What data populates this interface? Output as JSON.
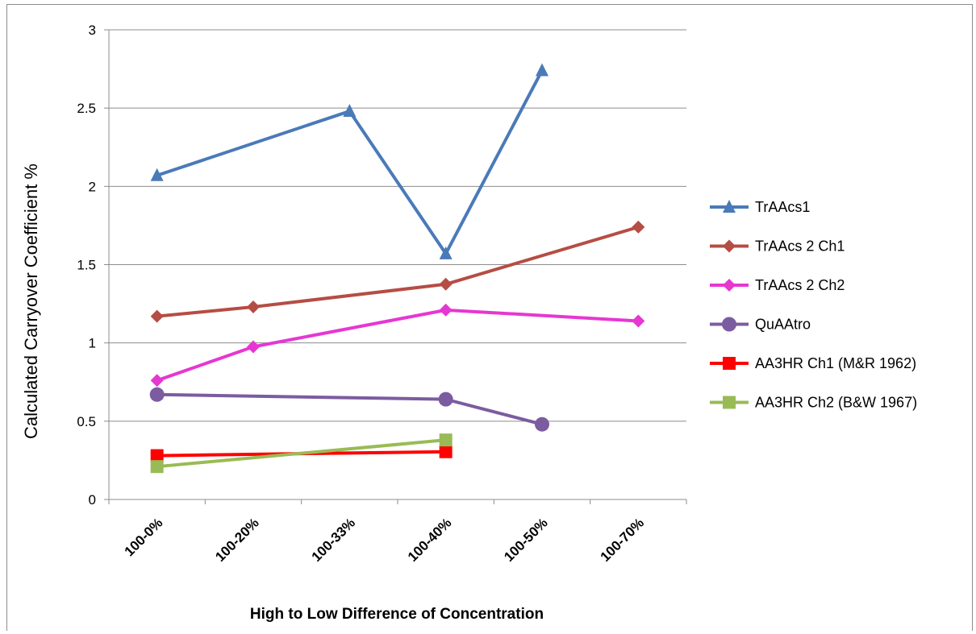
{
  "chart_data": {
    "type": "line",
    "title": "",
    "xlabel": "High to Low Difference of Concentration",
    "ylabel": "Calculated Carryover Coefficient %",
    "categories": [
      "100-0%",
      "100-20%",
      "100-33%",
      "100-40%",
      "100-50%",
      "100-70%"
    ],
    "ylim": [
      0,
      3
    ],
    "yticks": [
      0,
      0.5,
      1,
      1.5,
      2,
      2.5,
      3
    ],
    "ytick_labels": [
      "0",
      "0.5",
      "1",
      "1.5",
      "2",
      "2.5",
      "3"
    ],
    "grid": "horizontal",
    "legend_position": "right",
    "series": [
      {
        "name": "TrAAcs1",
        "color": "#4a7ab8",
        "marker": "triangle",
        "values": [
          2.07,
          null,
          2.48,
          1.57,
          2.74,
          null
        ]
      },
      {
        "name": "TrAAcs 2 Ch1",
        "color": "#b54d44",
        "marker": "diamond",
        "values": [
          1.17,
          1.23,
          null,
          1.375,
          null,
          1.74
        ]
      },
      {
        "name": "TrAAcs 2 Ch2",
        "color": "#e637d2",
        "marker": "diamond",
        "values": [
          0.76,
          0.975,
          null,
          1.21,
          null,
          1.14
        ]
      },
      {
        "name": "QuAAtro",
        "color": "#7b5ca0",
        "marker": "circle",
        "values": [
          0.67,
          null,
          null,
          0.64,
          0.48,
          null
        ]
      },
      {
        "name": "AA3HR Ch1 (M&R 1962)",
        "color": "#ff0000",
        "marker": "square",
        "values": [
          0.28,
          null,
          null,
          0.305,
          null,
          null
        ]
      },
      {
        "name": "AA3HR Ch2 (B&W 1967)",
        "color": "#99bb55",
        "marker": "square",
        "values": [
          0.21,
          null,
          null,
          0.38,
          null,
          null
        ]
      }
    ]
  }
}
